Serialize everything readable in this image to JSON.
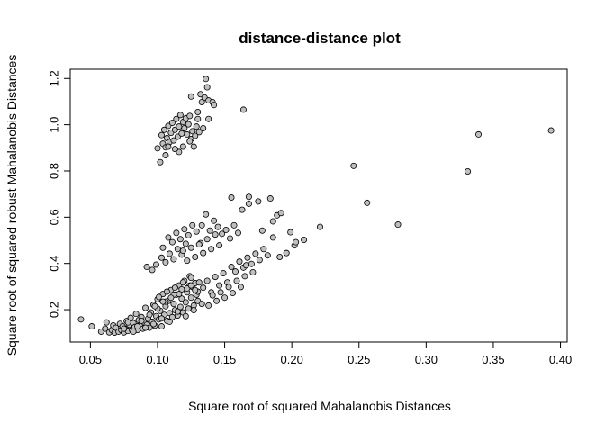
{
  "chart_data": {
    "type": "scatter",
    "title": "distance-distance plot",
    "xlabel": "Square root of squared Mahalanobis Distances",
    "ylabel": "Square root of squared robust Mahalanobis Distances",
    "xlim": [
      0.035,
      0.405
    ],
    "ylim": [
      0.06,
      1.24
    ],
    "xticks": [
      0.05,
      0.1,
      0.15,
      0.2,
      0.25,
      0.3,
      0.35,
      0.4
    ],
    "xtick_labels": [
      "0.05",
      "0.10",
      "0.15",
      "0.20",
      "0.25",
      "0.30",
      "0.35",
      "0.40"
    ],
    "yticks": [
      0.2,
      0.4,
      0.6,
      0.8,
      1.0,
      1.2
    ],
    "ytick_labels": [
      "0.2",
      "0.4",
      "0.6",
      "0.8",
      "1.0",
      "1.2"
    ],
    "grid": false,
    "point_fill": "#bfbfbf",
    "point_stroke": "#000000",
    "points": [
      [
        0.043,
        0.158
      ],
      [
        0.051,
        0.128
      ],
      [
        0.058,
        0.105
      ],
      [
        0.061,
        0.118
      ],
      [
        0.062,
        0.145
      ],
      [
        0.064,
        0.102
      ],
      [
        0.066,
        0.112
      ],
      [
        0.067,
        0.132
      ],
      [
        0.068,
        0.101
      ],
      [
        0.069,
        0.122
      ],
      [
        0.071,
        0.105
      ],
      [
        0.072,
        0.139
      ],
      [
        0.073,
        0.112
      ],
      [
        0.074,
        0.128
      ],
      [
        0.075,
        0.102
      ],
      [
        0.076,
        0.118
      ],
      [
        0.077,
        0.151
      ],
      [
        0.078,
        0.108
      ],
      [
        0.079,
        0.135
      ],
      [
        0.08,
        0.165
      ],
      [
        0.081,
        0.112
      ],
      [
        0.082,
        0.142
      ],
      [
        0.083,
        0.125
      ],
      [
        0.084,
        0.182
      ],
      [
        0.085,
        0.112
      ],
      [
        0.086,
        0.155
      ],
      [
        0.087,
        0.131
      ],
      [
        0.088,
        0.168
      ],
      [
        0.089,
        0.118
      ],
      [
        0.09,
        0.145
      ],
      [
        0.091,
        0.208
      ],
      [
        0.092,
        0.135
      ],
      [
        0.093,
        0.161
      ],
      [
        0.094,
        0.122
      ],
      [
        0.095,
        0.188
      ],
      [
        0.096,
        0.148
      ],
      [
        0.097,
        0.221
      ],
      [
        0.098,
        0.131
      ],
      [
        0.099,
        0.172
      ],
      [
        0.1,
        0.245
      ],
      [
        0.101,
        0.158
      ],
      [
        0.102,
        0.195
      ],
      [
        0.103,
        0.128
      ],
      [
        0.104,
        0.268
      ],
      [
        0.105,
        0.178
      ],
      [
        0.106,
        0.215
      ],
      [
        0.107,
        0.152
      ],
      [
        0.108,
        0.238
      ],
      [
        0.109,
        0.185
      ],
      [
        0.11,
        0.285
      ],
      [
        0.111,
        0.168
      ],
      [
        0.112,
        0.225
      ],
      [
        0.113,
        0.198
      ],
      [
        0.114,
        0.265
      ],
      [
        0.115,
        0.175
      ],
      [
        0.116,
        0.305
      ],
      [
        0.117,
        0.212
      ],
      [
        0.118,
        0.248
      ],
      [
        0.119,
        0.188
      ],
      [
        0.12,
        0.325
      ],
      [
        0.121,
        0.232
      ],
      [
        0.122,
        0.275
      ],
      [
        0.123,
        0.205
      ],
      [
        0.124,
        0.345
      ],
      [
        0.125,
        0.252
      ],
      [
        0.126,
        0.298
      ],
      [
        0.127,
        0.218
      ],
      [
        0.128,
        0.315
      ],
      [
        0.129,
        0.265
      ],
      [
        0.13,
        0.238
      ],
      [
        0.075,
        0.118
      ],
      [
        0.078,
        0.145
      ],
      [
        0.082,
        0.105
      ],
      [
        0.085,
        0.128
      ],
      [
        0.088,
        0.152
      ],
      [
        0.091,
        0.122
      ],
      [
        0.094,
        0.178
      ],
      [
        0.097,
        0.138
      ],
      [
        0.1,
        0.205
      ],
      [
        0.103,
        0.162
      ],
      [
        0.106,
        0.235
      ],
      [
        0.109,
        0.148
      ],
      [
        0.112,
        0.265
      ],
      [
        0.115,
        0.192
      ],
      [
        0.118,
        0.288
      ],
      [
        0.121,
        0.172
      ],
      [
        0.124,
        0.305
      ],
      [
        0.127,
        0.198
      ],
      [
        0.13,
        0.278
      ],
      [
        0.133,
        0.225
      ],
      [
        0.098,
        0.215
      ],
      [
        0.101,
        0.255
      ],
      [
        0.104,
        0.235
      ],
      [
        0.107,
        0.278
      ],
      [
        0.11,
        0.252
      ],
      [
        0.113,
        0.295
      ],
      [
        0.116,
        0.268
      ],
      [
        0.119,
        0.318
      ],
      [
        0.122,
        0.292
      ],
      [
        0.125,
        0.338
      ],
      [
        0.092,
        0.385
      ],
      [
        0.096,
        0.372
      ],
      [
        0.099,
        0.395
      ],
      [
        0.103,
        0.425
      ],
      [
        0.106,
        0.405
      ],
      [
        0.109,
        0.442
      ],
      [
        0.112,
        0.418
      ],
      [
        0.115,
        0.462
      ],
      [
        0.118,
        0.438
      ],
      [
        0.121,
        0.485
      ],
      [
        0.104,
        0.468
      ],
      [
        0.108,
        0.512
      ],
      [
        0.111,
        0.492
      ],
      [
        0.114,
        0.532
      ],
      [
        0.117,
        0.505
      ],
      [
        0.12,
        0.548
      ],
      [
        0.123,
        0.522
      ],
      [
        0.126,
        0.565
      ],
      [
        0.129,
        0.538
      ],
      [
        0.132,
        0.488
      ],
      [
        0.119,
        0.455
      ],
      [
        0.122,
        0.412
      ],
      [
        0.125,
        0.468
      ],
      [
        0.128,
        0.428
      ],
      [
        0.131,
        0.482
      ],
      [
        0.134,
        0.445
      ],
      [
        0.137,
        0.505
      ],
      [
        0.14,
        0.462
      ],
      [
        0.143,
        0.525
      ],
      [
        0.146,
        0.478
      ],
      [
        0.133,
        0.565
      ],
      [
        0.136,
        0.612
      ],
      [
        0.139,
        0.542
      ],
      [
        0.142,
        0.585
      ],
      [
        0.145,
        0.558
      ],
      [
        0.148,
        0.528
      ],
      [
        0.151,
        0.545
      ],
      [
        0.154,
        0.508
      ],
      [
        0.157,
        0.565
      ],
      [
        0.16,
        0.532
      ],
      [
        0.125,
        0.305
      ],
      [
        0.128,
        0.285
      ],
      [
        0.131,
        0.318
      ],
      [
        0.134,
        0.295
      ],
      [
        0.137,
        0.325
      ],
      [
        0.14,
        0.275
      ],
      [
        0.143,
        0.342
      ],
      [
        0.146,
        0.305
      ],
      [
        0.149,
        0.358
      ],
      [
        0.152,
        0.318
      ],
      [
        0.138,
        0.218
      ],
      [
        0.141,
        0.262
      ],
      [
        0.144,
        0.238
      ],
      [
        0.147,
        0.275
      ],
      [
        0.15,
        0.252
      ],
      [
        0.153,
        0.298
      ],
      [
        0.156,
        0.272
      ],
      [
        0.159,
        0.325
      ],
      [
        0.162,
        0.298
      ],
      [
        0.165,
        0.345
      ],
      [
        0.155,
        0.385
      ],
      [
        0.158,
        0.365
      ],
      [
        0.161,
        0.408
      ],
      [
        0.164,
        0.382
      ],
      [
        0.167,
        0.425
      ],
      [
        0.17,
        0.398
      ],
      [
        0.173,
        0.442
      ],
      [
        0.176,
        0.415
      ],
      [
        0.179,
        0.462
      ],
      [
        0.182,
        0.435
      ],
      [
        0.155,
        0.685
      ],
      [
        0.163,
        0.632
      ],
      [
        0.168,
        0.658
      ],
      [
        0.168,
        0.688
      ],
      [
        0.175,
        0.668
      ],
      [
        0.178,
        0.542
      ],
      [
        0.184,
        0.681
      ],
      [
        0.186,
        0.582
      ],
      [
        0.189,
        0.608
      ],
      [
        0.192,
        0.618
      ],
      [
        0.199,
        0.535
      ],
      [
        0.202,
        0.478
      ],
      [
        0.203,
        0.492
      ],
      [
        0.209,
        0.502
      ],
      [
        0.221,
        0.558
      ],
      [
        0.186,
        0.512
      ],
      [
        0.191,
        0.428
      ],
      [
        0.196,
        0.445
      ],
      [
        0.171,
        0.362
      ],
      [
        0.166,
        0.392
      ],
      [
        0.246,
        0.822
      ],
      [
        0.256,
        0.662
      ],
      [
        0.279,
        0.568
      ],
      [
        0.331,
        0.798
      ],
      [
        0.339,
        0.958
      ],
      [
        0.393,
        0.975
      ],
      [
        0.1,
        0.898
      ],
      [
        0.102,
        0.838
      ],
      [
        0.103,
        0.955
      ],
      [
        0.104,
        0.918
      ],
      [
        0.105,
        0.978
      ],
      [
        0.106,
        0.902
      ],
      [
        0.107,
        0.942
      ],
      [
        0.108,
        0.995
      ],
      [
        0.109,
        0.925
      ],
      [
        0.11,
        0.965
      ],
      [
        0.111,
        1.008
      ],
      [
        0.112,
        0.932
      ],
      [
        0.113,
        0.978
      ],
      [
        0.114,
        1.025
      ],
      [
        0.115,
        0.948
      ],
      [
        0.116,
        0.992
      ],
      [
        0.117,
        1.042
      ],
      [
        0.118,
        0.962
      ],
      [
        0.119,
        1.012
      ],
      [
        0.12,
        0.985
      ],
      [
        0.121,
        1.028
      ],
      [
        0.122,
        0.958
      ],
      [
        0.123,
        1.002
      ],
      [
        0.124,
        1.038
      ],
      [
        0.125,
        0.938
      ],
      [
        0.126,
        0.972
      ],
      [
        0.127,
        0.905
      ],
      [
        0.128,
        0.952
      ],
      [
        0.129,
        0.992
      ],
      [
        0.13,
        1.025
      ],
      [
        0.131,
        0.968
      ],
      [
        0.132,
        1.132
      ],
      [
        0.133,
        1.098
      ],
      [
        0.134,
        0.985
      ],
      [
        0.135,
        1.118
      ],
      [
        0.136,
        1.198
      ],
      [
        0.137,
        1.162
      ],
      [
        0.138,
        1.105
      ],
      [
        0.141,
        1.098
      ],
      [
        0.142,
        1.085
      ],
      [
        0.125,
        1.122
      ],
      [
        0.13,
        1.055
      ],
      [
        0.138,
        1.025
      ],
      [
        0.164,
        1.065
      ],
      [
        0.116,
        0.882
      ],
      [
        0.119,
        0.905
      ],
      [
        0.113,
        0.895
      ],
      [
        0.108,
        0.905
      ],
      [
        0.106,
        0.868
      ],
      [
        0.124,
        0.928
      ]
    ]
  }
}
